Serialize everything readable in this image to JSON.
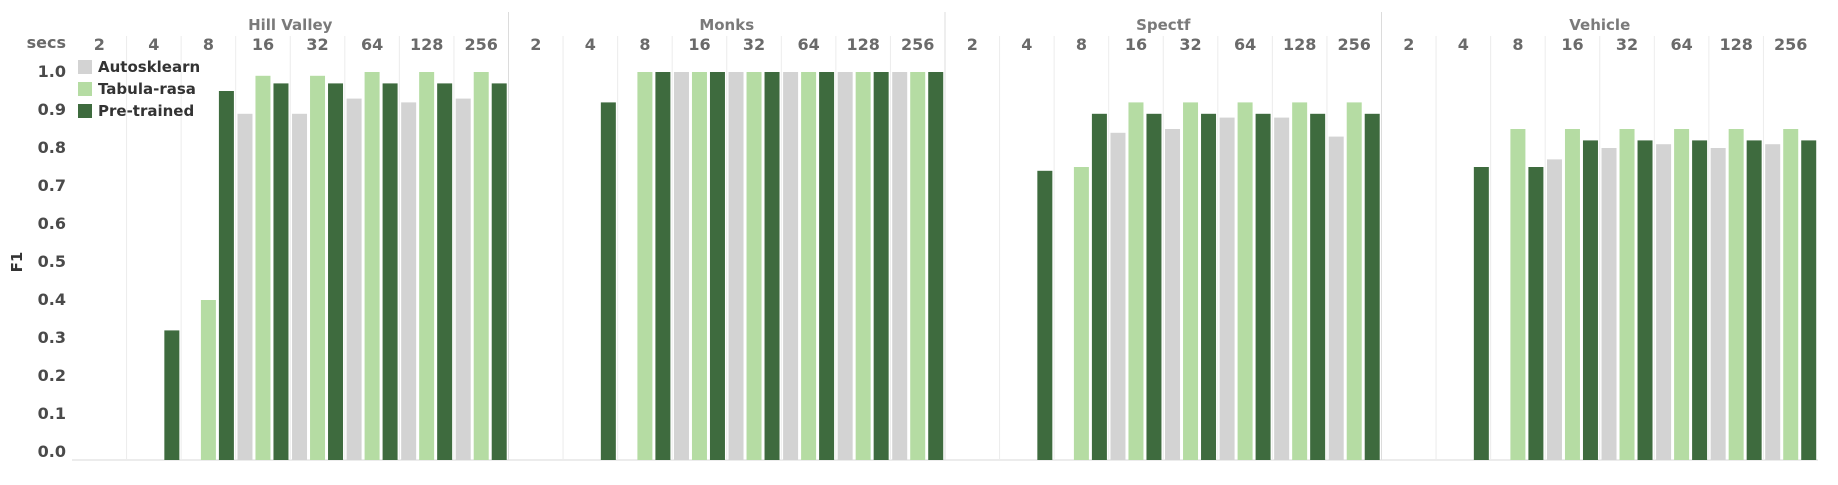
{
  "chart_data": {
    "type": "bar",
    "ylabel": "F1",
    "x_header": "secs",
    "ylim": [
      0,
      1.0
    ],
    "yticks": [
      "0.0",
      "0.1",
      "0.2",
      "0.3",
      "0.4",
      "0.5",
      "0.6",
      "0.7",
      "0.8",
      "0.9",
      "1.0"
    ],
    "categories": [
      "2",
      "4",
      "8",
      "16",
      "32",
      "64",
      "128",
      "256"
    ],
    "legend": [
      {
        "name": "Autosklearn",
        "color": "#d3d3d3"
      },
      {
        "name": "Tabula-rasa",
        "color": "#b5dca3"
      },
      {
        "name": "Pre-trained",
        "color": "#3e6b3e"
      }
    ],
    "legend_position": "top-left",
    "grid": "vertical separators only",
    "panels": [
      {
        "title": "Hill Valley",
        "series": [
          {
            "name": "Autosklearn",
            "values": [
              null,
              null,
              null,
              0.89,
              0.89,
              0.93,
              0.92,
              0.93
            ]
          },
          {
            "name": "Tabula-rasa",
            "values": [
              null,
              null,
              0.4,
              0.99,
              0.99,
              1.0,
              1.0,
              1.0
            ]
          },
          {
            "name": "Pre-trained",
            "values": [
              null,
              0.32,
              0.95,
              0.97,
              0.97,
              0.97,
              0.97,
              0.97
            ]
          }
        ]
      },
      {
        "title": "Monks",
        "series": [
          {
            "name": "Autosklearn",
            "values": [
              null,
              null,
              null,
              1.0,
              1.0,
              1.0,
              1.0,
              1.0
            ]
          },
          {
            "name": "Tabula-rasa",
            "values": [
              null,
              null,
              1.0,
              1.0,
              1.0,
              1.0,
              1.0,
              1.0
            ]
          },
          {
            "name": "Pre-trained",
            "values": [
              null,
              0.92,
              1.0,
              1.0,
              1.0,
              1.0,
              1.0,
              1.0
            ]
          }
        ]
      },
      {
        "title": "Spectf",
        "series": [
          {
            "name": "Autosklearn",
            "values": [
              null,
              null,
              null,
              0.84,
              0.85,
              0.88,
              0.88,
              0.83
            ]
          },
          {
            "name": "Tabula-rasa",
            "values": [
              null,
              null,
              0.75,
              0.92,
              0.92,
              0.92,
              0.92,
              0.92
            ]
          },
          {
            "name": "Pre-trained",
            "values": [
              null,
              0.74,
              0.89,
              0.89,
              0.89,
              0.89,
              0.89,
              0.89
            ]
          }
        ]
      },
      {
        "title": "Vehicle",
        "series": [
          {
            "name": "Autosklearn",
            "values": [
              null,
              null,
              null,
              0.77,
              0.8,
              0.81,
              0.8,
              0.81
            ]
          },
          {
            "name": "Tabula-rasa",
            "values": [
              null,
              null,
              0.85,
              0.85,
              0.85,
              0.85,
              0.85,
              0.85
            ]
          },
          {
            "name": "Pre-trained",
            "values": [
              null,
              0.75,
              0.75,
              0.82,
              0.82,
              0.82,
              0.82,
              0.82
            ]
          }
        ]
      }
    ]
  }
}
